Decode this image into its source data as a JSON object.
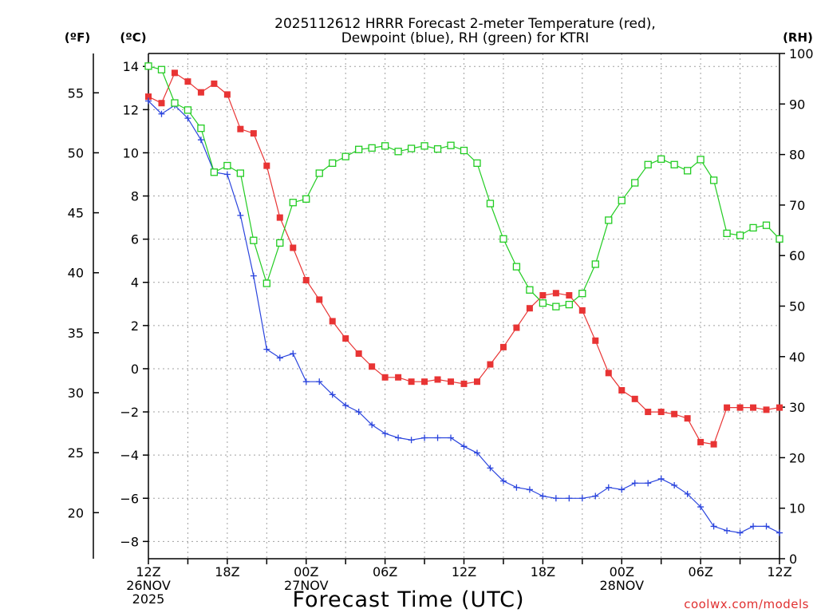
{
  "chart_data": {
    "type": "line",
    "title": [
      "2025112612 HRRR Forecast 2-meter Temperature (red),",
      "Dewpoint (blue), RH (green) for KTRI"
    ],
    "xlabel": "Forecast Time (UTC)",
    "credit": "coolwx.com/models",
    "units": {
      "fahrenheit": "(ºF)",
      "celsius": "(ºC)",
      "rh": "(RH)"
    },
    "x_range": [
      0,
      48
    ],
    "y_celsius_range": [
      -8.8,
      14.6
    ],
    "y_rh_range": [
      0,
      100
    ],
    "x_ticks": [
      {
        "x": 0,
        "label": [
          "12Z",
          "26NOV",
          "2025"
        ]
      },
      {
        "x": 6,
        "label": [
          "18Z"
        ]
      },
      {
        "x": 12,
        "label": [
          "00Z",
          "27NOV"
        ]
      },
      {
        "x": 18,
        "label": [
          "06Z"
        ]
      },
      {
        "x": 24,
        "label": [
          "12Z"
        ]
      },
      {
        "x": 30,
        "label": [
          "18Z"
        ]
      },
      {
        "x": 36,
        "label": [
          "00Z",
          "28NOV"
        ]
      },
      {
        "x": 42,
        "label": [
          "06Z"
        ]
      },
      {
        "x": 48,
        "label": [
          "12Z"
        ]
      }
    ],
    "x_grid": [
      0,
      3,
      6,
      9,
      12,
      15,
      18,
      21,
      24,
      27,
      30,
      33,
      36,
      39,
      42,
      45,
      48
    ],
    "celsius_ticks": [
      14,
      12,
      10,
      8,
      6,
      4,
      2,
      0,
      -2,
      -4,
      -6,
      -8
    ],
    "celsius_tick_labels": [
      "14",
      "12",
      "10",
      "8",
      "6",
      "4",
      "2",
      "0",
      "−2",
      "−4",
      "−6",
      "−8"
    ],
    "fahrenheit_ticks": [
      55,
      50,
      45,
      40,
      35,
      30,
      25,
      20
    ],
    "fahrenheit_tick_labels": [
      "55",
      "50",
      "45",
      "40",
      "35",
      "30",
      "25",
      "20"
    ],
    "rh_ticks": [
      100,
      90,
      80,
      70,
      60,
      50,
      40,
      30,
      20,
      10,
      0
    ],
    "rh_tick_labels": [
      "100",
      "90",
      "80",
      "70",
      "60",
      "50",
      "40",
      "30",
      "20",
      "10",
      "0"
    ],
    "series": [
      {
        "name": "2-meter Temperature (red)",
        "axis": "celsius",
        "color": "#e83434",
        "marker": "filled-square",
        "values": [
          12.6,
          12.3,
          13.7,
          13.3,
          12.8,
          13.2,
          12.7,
          11.1,
          10.9,
          9.4,
          7.0,
          5.6,
          4.1,
          3.2,
          2.2,
          1.4,
          0.7,
          0.1,
          -0.4,
          -0.4,
          -0.6,
          -0.6,
          -0.5,
          -0.6,
          -0.7,
          -0.6,
          0.2,
          1.0,
          1.9,
          2.8,
          3.4,
          3.5,
          3.4,
          2.7,
          1.3,
          -0.2,
          -1.0,
          -1.4,
          -2.0,
          -2.0,
          -2.1,
          -2.3,
          -3.4,
          -3.5,
          -1.8,
          -1.8,
          -1.8,
          -1.9,
          -1.8
        ]
      },
      {
        "name": "Dewpoint (blue)",
        "axis": "celsius",
        "color": "#2a44dd",
        "marker": "plus",
        "values": [
          12.4,
          11.8,
          12.2,
          11.6,
          10.6,
          9.1,
          9.0,
          7.1,
          4.3,
          0.9,
          0.5,
          0.7,
          -0.6,
          -0.6,
          -1.2,
          -1.7,
          -2.0,
          -2.6,
          -3.0,
          -3.2,
          -3.3,
          -3.2,
          -3.2,
          -3.2,
          -3.6,
          -3.9,
          -4.6,
          -5.2,
          -5.5,
          -5.6,
          -5.9,
          -6.0,
          -6.0,
          -6.0,
          -5.9,
          -5.5,
          -5.6,
          -5.3,
          -5.3,
          -5.1,
          -5.4,
          -5.8,
          -6.4,
          -7.3,
          -7.5,
          -7.6,
          -7.3,
          -7.3,
          -7.6
        ]
      },
      {
        "name": "RH (green)",
        "axis": "rh",
        "color": "#22cc22",
        "marker": "open-square",
        "values": [
          97.5,
          96.8,
          90.2,
          88.8,
          85.2,
          76.5,
          77.8,
          76.3,
          63.0,
          54.5,
          62.5,
          70.5,
          71.2,
          76.3,
          78.3,
          79.6,
          81.0,
          81.3,
          81.7,
          80.6,
          81.2,
          81.7,
          81.1,
          81.8,
          80.8,
          78.3,
          70.3,
          63.3,
          57.8,
          53.2,
          50.6,
          49.9,
          50.3,
          52.5,
          58.3,
          67.0,
          70.9,
          74.4,
          78.0,
          79.1,
          78.0,
          76.8,
          79.0,
          74.9,
          64.4,
          64.0,
          65.5,
          66.0,
          63.3
        ]
      }
    ]
  }
}
